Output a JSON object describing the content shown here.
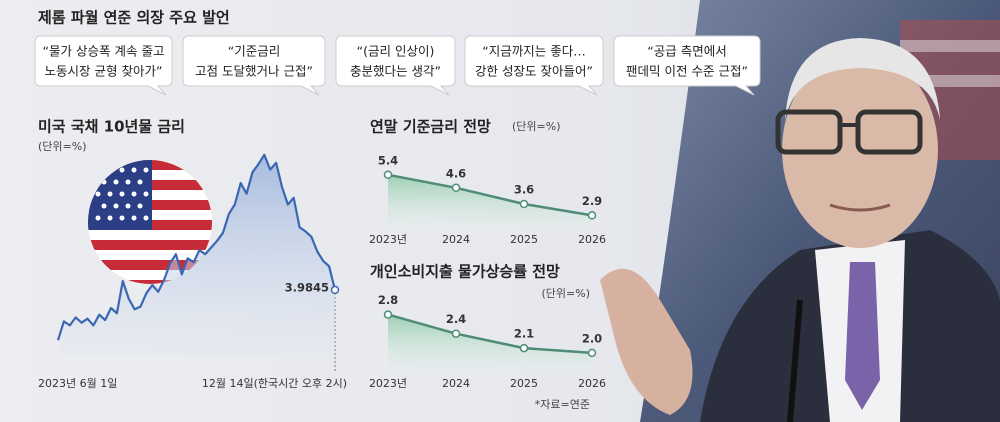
{
  "title": "제롬 파월 연준 의장 주요 발언",
  "quotes": [
    {
      "lines": [
        "“물가 상승폭 계속 줄고",
        "노동시장 균형 찾아가”"
      ]
    },
    {
      "lines": [
        "“기준금리",
        "고점 도달했거나 근접”"
      ]
    },
    {
      "lines": [
        "“(금리 인상이)",
        "충분했다는 생각”"
      ]
    },
    {
      "lines": [
        "“지금까지는 좋다…",
        "강한 성장도 잦아들어”"
      ]
    },
    {
      "lines": [
        "“공급 측면에서",
        "팬데믹 이전 수준 근접”"
      ]
    }
  ],
  "chart_data": [
    {
      "type": "area",
      "title": "미국 국채 10년물 금리",
      "subtitle": "(단위=%)",
      "color": "#3a67b3",
      "categories": [
        "2023년 6월 1일",
        null,
        null,
        null,
        null,
        null,
        null,
        null,
        null,
        null,
        null,
        null,
        null,
        null,
        null,
        null,
        null,
        null,
        null,
        null,
        null,
        null,
        null,
        null,
        null,
        null,
        null,
        null,
        null,
        null,
        null,
        null,
        null,
        null,
        null,
        null,
        null,
        null,
        null,
        null,
        null,
        null,
        null,
        null,
        null,
        null,
        null,
        "12월 14일(한국시간 오후 2시)"
      ],
      "values": [
        3.61,
        3.75,
        3.72,
        3.78,
        3.74,
        3.77,
        3.72,
        3.8,
        3.76,
        3.85,
        3.81,
        4.05,
        3.92,
        3.84,
        3.86,
        3.96,
        4.02,
        3.97,
        4.06,
        4.18,
        4.25,
        4.1,
        4.22,
        4.19,
        4.28,
        4.25,
        4.3,
        4.35,
        4.41,
        4.55,
        4.62,
        4.78,
        4.7,
        4.86,
        4.92,
        4.99,
        4.88,
        4.93,
        4.75,
        4.62,
        4.67,
        4.45,
        4.42,
        4.38,
        4.27,
        4.2,
        4.16,
        3.9845
      ],
      "ylim": [
        3.5,
        5.1
      ]
    },
    {
      "type": "area",
      "title": "연말 기준금리 전망",
      "subtitle": "(단위=%)",
      "color": "#4e8c78",
      "categories": [
        "2023년",
        "2024",
        "2025",
        "2026"
      ],
      "values": [
        5.4,
        4.6,
        3.6,
        2.9
      ],
      "ylim": [
        2,
        6
      ]
    },
    {
      "type": "area",
      "title": "개인소비지출 물가상승률 전망",
      "subtitle": "(단위=%)",
      "color": "#4e8c78",
      "categories": [
        "2023년",
        "2024",
        "2025",
        "2026"
      ],
      "values": [
        2.8,
        2.4,
        2.1,
        2.0
      ],
      "value_labels": [
        "2.8",
        "2.4",
        "2.1",
        "2.0"
      ],
      "ylim": [
        1.6,
        3.0
      ]
    }
  ],
  "source": "*자료=연준"
}
